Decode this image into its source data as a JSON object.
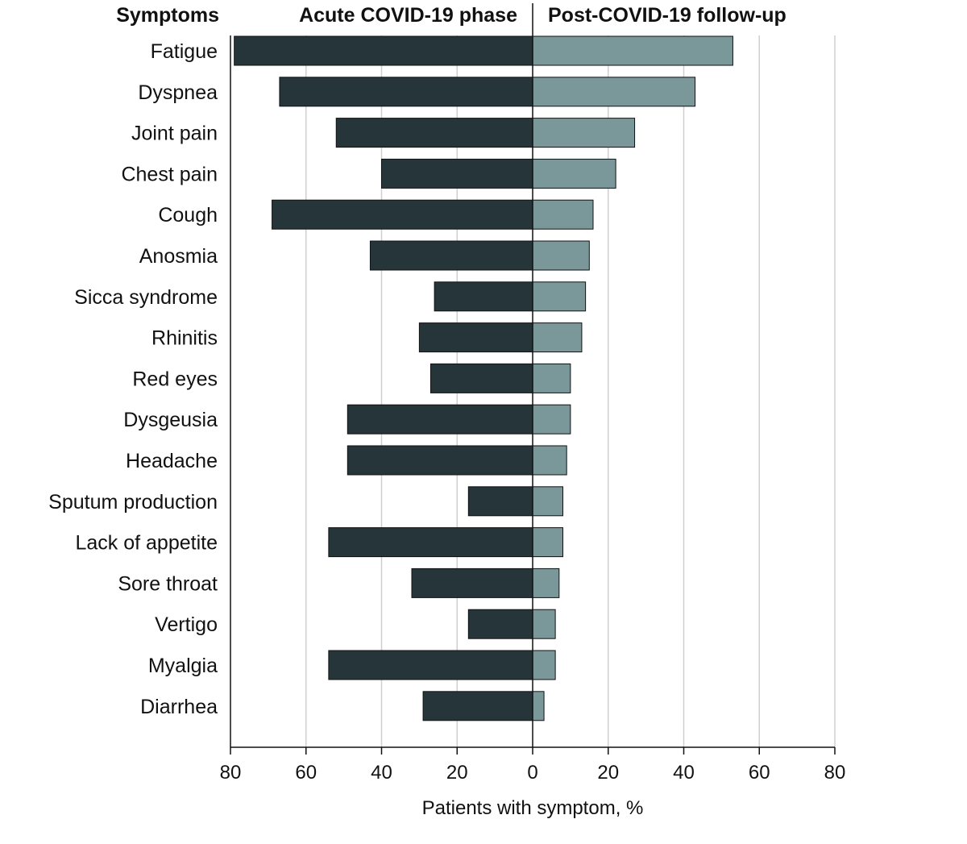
{
  "chart_data": {
    "type": "bar",
    "orientation": "horizontal-diverging",
    "category_header": "Symptoms",
    "categories": [
      "Fatigue",
      "Dyspnea",
      "Joint pain",
      "Chest pain",
      "Cough",
      "Anosmia",
      "Sicca syndrome",
      "Rhinitis",
      "Red eyes",
      "Dysgeusia",
      "Headache",
      "Sputum production",
      "Lack of appetite",
      "Sore throat",
      "Vertigo",
      "Myalgia",
      "Diarrhea"
    ],
    "series": [
      {
        "name": "Acute COVID-19 phase",
        "side": "left",
        "color": "#263539",
        "values": [
          79,
          67,
          52,
          40,
          69,
          43,
          26,
          30,
          27,
          49,
          49,
          17,
          54,
          32,
          17,
          54,
          29
        ]
      },
      {
        "name": "Post-COVID-19 follow-up",
        "side": "right",
        "color": "#7a979a",
        "values": [
          53,
          43,
          27,
          22,
          16,
          15,
          14,
          13,
          10,
          10,
          9,
          8,
          8,
          7,
          6,
          6,
          3
        ]
      }
    ],
    "xlabel": "Patients with symptom, %",
    "xlim": [
      -80,
      80
    ],
    "ticks": [
      -80,
      -60,
      -40,
      -20,
      0,
      20,
      40,
      60,
      80
    ],
    "tick_labels": [
      "80",
      "60",
      "40",
      "20",
      "0",
      "20",
      "40",
      "60",
      "80"
    ],
    "grid": true
  }
}
